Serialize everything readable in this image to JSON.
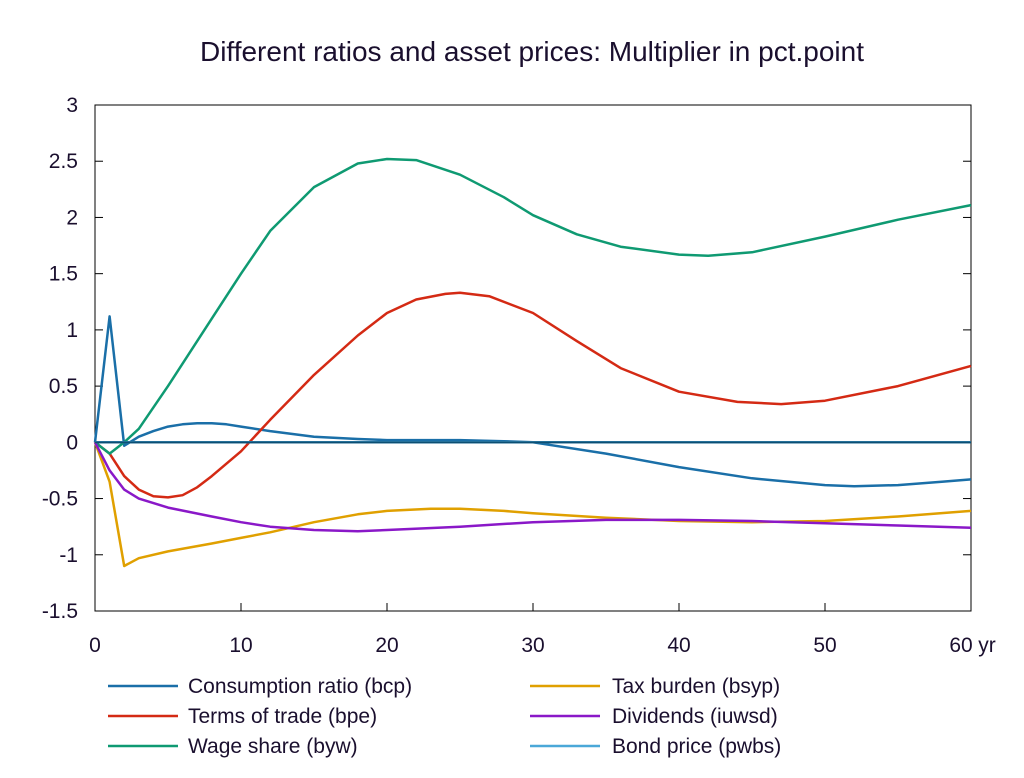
{
  "chart_data": {
    "type": "line",
    "title": "Different ratios and asset prices: Multiplier in pct.point",
    "xlabel": "",
    "ylabel": "",
    "x_unit_label": "yr",
    "xlim": [
      0,
      60
    ],
    "ylim": [
      -1.5,
      3
    ],
    "x_ticks": [
      0,
      10,
      20,
      30,
      40,
      50,
      60
    ],
    "y_ticks": [
      3,
      2.5,
      2,
      1.5,
      1,
      0.5,
      0,
      -0.5,
      -1,
      -1.5
    ],
    "grid": false,
    "legend_position": "bottom",
    "series": [
      {
        "name": "Consumption ratio (bcp)",
        "color": "#1a6fa8",
        "points": [
          [
            0,
            0
          ],
          [
            1,
            1.12
          ],
          [
            2,
            -0.03
          ],
          [
            3,
            0.05
          ],
          [
            4,
            0.1
          ],
          [
            5,
            0.14
          ],
          [
            6,
            0.16
          ],
          [
            7,
            0.17
          ],
          [
            8,
            0.17
          ],
          [
            9,
            0.16
          ],
          [
            10,
            0.14
          ],
          [
            12,
            0.1
          ],
          [
            15,
            0.05
          ],
          [
            18,
            0.03
          ],
          [
            20,
            0.02
          ],
          [
            25,
            0.02
          ],
          [
            28,
            0.01
          ],
          [
            30,
            0.0
          ],
          [
            35,
            -0.1
          ],
          [
            40,
            -0.22
          ],
          [
            45,
            -0.32
          ],
          [
            50,
            -0.38
          ],
          [
            52,
            -0.39
          ],
          [
            55,
            -0.38
          ],
          [
            58,
            -0.35
          ],
          [
            60,
            -0.33
          ]
        ]
      },
      {
        "name": "Terms of trade (bpe)",
        "color": "#d42a14",
        "points": [
          [
            0,
            0
          ],
          [
            1,
            -0.1
          ],
          [
            2,
            -0.3
          ],
          [
            3,
            -0.42
          ],
          [
            4,
            -0.48
          ],
          [
            5,
            -0.49
          ],
          [
            6,
            -0.47
          ],
          [
            7,
            -0.4
          ],
          [
            8,
            -0.3
          ],
          [
            10,
            -0.08
          ],
          [
            12,
            0.2
          ],
          [
            15,
            0.6
          ],
          [
            18,
            0.95
          ],
          [
            20,
            1.15
          ],
          [
            22,
            1.27
          ],
          [
            24,
            1.32
          ],
          [
            25,
            1.33
          ],
          [
            27,
            1.3
          ],
          [
            30,
            1.15
          ],
          [
            33,
            0.9
          ],
          [
            36,
            0.66
          ],
          [
            40,
            0.45
          ],
          [
            44,
            0.36
          ],
          [
            47,
            0.34
          ],
          [
            50,
            0.37
          ],
          [
            55,
            0.5
          ],
          [
            60,
            0.68
          ]
        ]
      },
      {
        "name": "Wage share (byw)",
        "color": "#0f9a72",
        "points": [
          [
            0,
            0
          ],
          [
            1,
            -0.1
          ],
          [
            2,
            0.0
          ],
          [
            3,
            0.12
          ],
          [
            5,
            0.5
          ],
          [
            8,
            1.1
          ],
          [
            10,
            1.5
          ],
          [
            12,
            1.88
          ],
          [
            15,
            2.27
          ],
          [
            18,
            2.48
          ],
          [
            20,
            2.52
          ],
          [
            22,
            2.51
          ],
          [
            25,
            2.38
          ],
          [
            28,
            2.18
          ],
          [
            30,
            2.02
          ],
          [
            33,
            1.85
          ],
          [
            36,
            1.74
          ],
          [
            40,
            1.67
          ],
          [
            42,
            1.66
          ],
          [
            45,
            1.69
          ],
          [
            50,
            1.83
          ],
          [
            55,
            1.98
          ],
          [
            60,
            2.11
          ]
        ]
      },
      {
        "name": "Tax burden (bsyp)",
        "color": "#e0a000",
        "points": [
          [
            0,
            0
          ],
          [
            1,
            -0.35
          ],
          [
            2,
            -1.1
          ],
          [
            3,
            -1.03
          ],
          [
            5,
            -0.97
          ],
          [
            8,
            -0.9
          ],
          [
            10,
            -0.85
          ],
          [
            12,
            -0.8
          ],
          [
            15,
            -0.71
          ],
          [
            18,
            -0.64
          ],
          [
            20,
            -0.61
          ],
          [
            23,
            -0.59
          ],
          [
            25,
            -0.59
          ],
          [
            28,
            -0.61
          ],
          [
            30,
            -0.63
          ],
          [
            35,
            -0.67
          ],
          [
            40,
            -0.7
          ],
          [
            45,
            -0.71
          ],
          [
            50,
            -0.7
          ],
          [
            55,
            -0.66
          ],
          [
            60,
            -0.61
          ]
        ]
      },
      {
        "name": "Dividends (iuwsd)",
        "color": "#8a18c8",
        "points": [
          [
            0,
            0
          ],
          [
            1,
            -0.25
          ],
          [
            2,
            -0.42
          ],
          [
            3,
            -0.5
          ],
          [
            5,
            -0.58
          ],
          [
            8,
            -0.66
          ],
          [
            10,
            -0.71
          ],
          [
            12,
            -0.75
          ],
          [
            15,
            -0.78
          ],
          [
            18,
            -0.79
          ],
          [
            20,
            -0.78
          ],
          [
            25,
            -0.75
          ],
          [
            30,
            -0.71
          ],
          [
            35,
            -0.69
          ],
          [
            40,
            -0.69
          ],
          [
            45,
            -0.7
          ],
          [
            50,
            -0.72
          ],
          [
            55,
            -0.74
          ],
          [
            60,
            -0.76
          ]
        ]
      },
      {
        "name": "Bond price (pwbs)",
        "color": "#4aa8d8",
        "points": [
          [
            0,
            0
          ],
          [
            60,
            0
          ]
        ]
      }
    ],
    "zero_line": {
      "y": 0,
      "color": "#0d4f73"
    }
  }
}
